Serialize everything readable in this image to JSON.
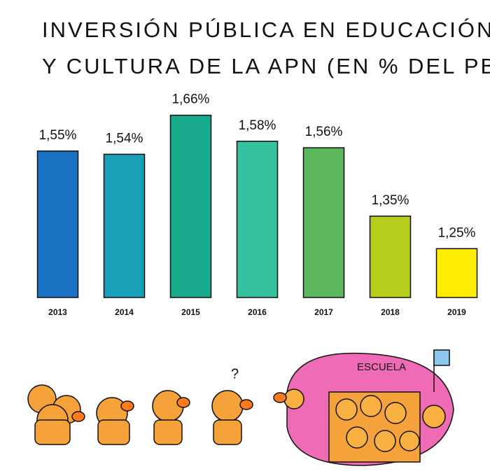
{
  "chart_data": {
    "type": "bar",
    "title": [
      "INVERSIÓN PÚBLICA EN EDUCACIÓN",
      "Y CULTURA DE LA APN (EN % DEL PBI)"
    ],
    "categories": [
      "2013",
      "2014",
      "2015",
      "2016",
      "2017",
      "2018",
      "2019"
    ],
    "values": [
      1.55,
      1.54,
      1.66,
      1.58,
      1.56,
      1.35,
      1.25
    ],
    "value_labels": [
      "1,55%",
      "1,54%",
      "1,66%",
      "1,58%",
      "1,56%",
      "1,35%",
      "1,25%"
    ],
    "colors": [
      "#1a72c4",
      "#19a0b9",
      "#17a98c",
      "#36c1a1",
      "#5bb85d",
      "#b7cd1b",
      "#ffec00"
    ],
    "ylim": [
      1.1,
      1.7
    ]
  },
  "illustration": {
    "school_sign": "ESCUELA",
    "question": "?"
  }
}
